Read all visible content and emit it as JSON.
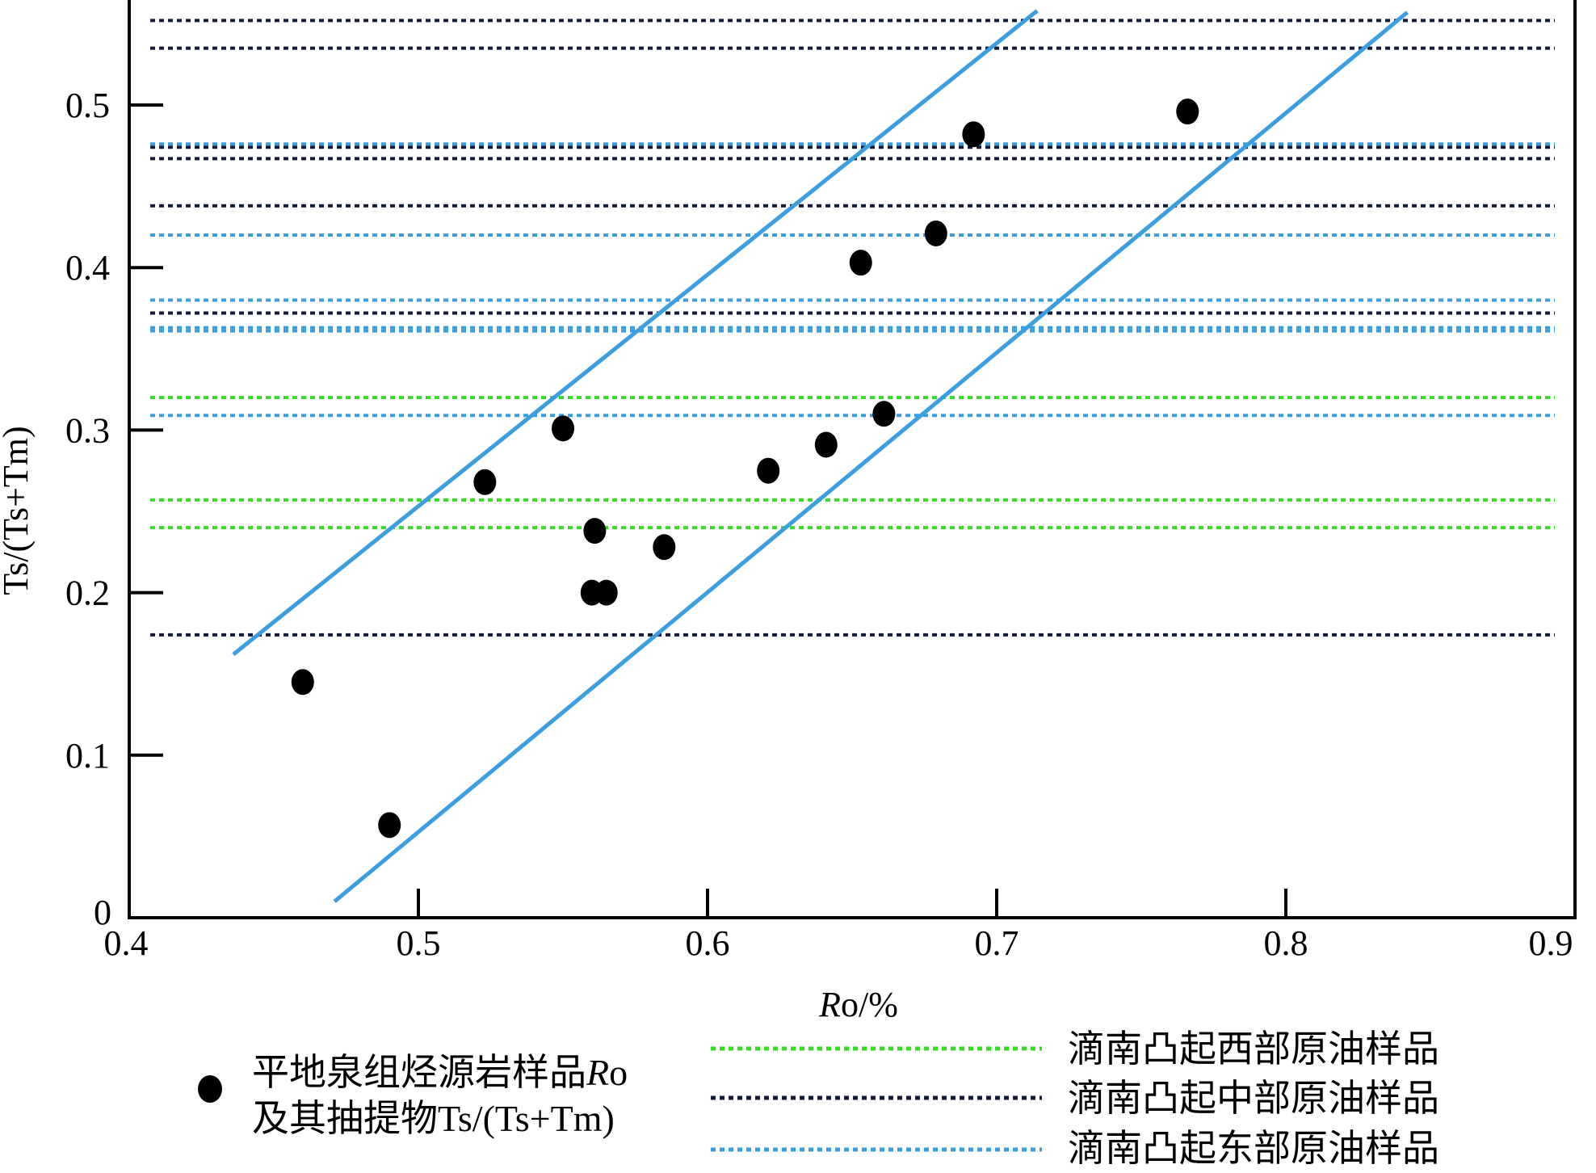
{
  "chart_data": {
    "type": "scatter",
    "xlabel_italic": "R",
    "xlabel_rest": "o/%",
    "ylabel": "Ts/(Ts+Tm)",
    "xlim": [
      0.4,
      0.9
    ],
    "ylim": [
      0,
      0.5
    ],
    "x_ticks": [
      "0.4",
      "0.5",
      "0.6",
      "0.7",
      "0.8",
      "0.9"
    ],
    "y_ticks": [
      "0",
      "0.1",
      "0.2",
      "0.3",
      "0.4",
      "0.5"
    ],
    "points": [
      {
        "x": 0.46,
        "y": 0.145
      },
      {
        "x": 0.49,
        "y": 0.057
      },
      {
        "x": 0.523,
        "y": 0.268
      },
      {
        "x": 0.55,
        "y": 0.301
      },
      {
        "x": 0.561,
        "y": 0.238
      },
      {
        "x": 0.56,
        "y": 0.2
      },
      {
        "x": 0.565,
        "y": 0.2
      },
      {
        "x": 0.585,
        "y": 0.228
      },
      {
        "x": 0.621,
        "y": 0.275
      },
      {
        "x": 0.641,
        "y": 0.291
      },
      {
        "x": 0.653,
        "y": 0.403
      },
      {
        "x": 0.661,
        "y": 0.31
      },
      {
        "x": 0.679,
        "y": 0.421
      },
      {
        "x": 0.692,
        "y": 0.482
      },
      {
        "x": 0.766,
        "y": 0.496
      }
    ],
    "trend_lines": [
      {
        "x1": 0.436,
        "y1": 0.162,
        "x2": 0.714,
        "y2": 0.558
      },
      {
        "x1": 0.471,
        "y1": 0.01,
        "x2": 0.842,
        "y2": 0.557
      }
    ],
    "reference_lines": [
      {
        "group": "central",
        "y": 0.552
      },
      {
        "group": "central",
        "y": 0.535
      },
      {
        "group": "central",
        "y": 0.474
      },
      {
        "group": "central",
        "y": 0.467
      },
      {
        "group": "central",
        "y": 0.438
      },
      {
        "group": "central",
        "y": 0.372
      },
      {
        "group": "central",
        "y": 0.174
      },
      {
        "group": "east",
        "y": 0.476
      },
      {
        "group": "east",
        "y": 0.42
      },
      {
        "group": "east",
        "y": 0.38
      },
      {
        "group": "east",
        "y": 0.363
      },
      {
        "group": "east",
        "y": 0.361
      },
      {
        "group": "east",
        "y": 0.309
      },
      {
        "group": "west",
        "y": 0.32
      },
      {
        "group": "west",
        "y": 0.257
      },
      {
        "group": "west",
        "y": 0.24
      }
    ],
    "legend": {
      "marker_line1_text": "平地泉组烃源岩样品",
      "marker_line1_italic": "R",
      "marker_line1_tail": "o",
      "marker_line2": "及其抽提物Ts/(Ts+Tm)",
      "west": "滴南凸起西部原油样品",
      "central": "滴南凸起中部原油样品",
      "east": "滴南凸起东部原油样品"
    },
    "colors": {
      "point": "#000000",
      "trend": "#3a9ee0",
      "west": "#33dd22",
      "central": "#151a3a",
      "east": "#3a9ee0",
      "axis": "#000000"
    }
  }
}
